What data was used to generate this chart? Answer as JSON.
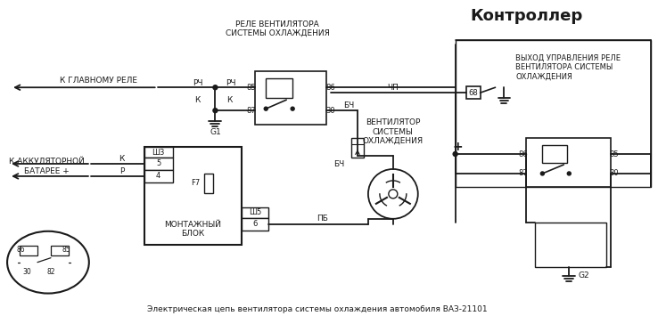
{
  "title": "Контроллер",
  "subtitle": "Электрическая цепь вентилятора системы охлаждения автомобиля ВАЗ-21101",
  "bg_color": "#ffffff",
  "line_color": "#1a1a1a",
  "labels": {
    "relay_top": "РЕЛЕ ВЕНТИЛЯТОРА\nСИСТЕМЫ ОХЛАЖДЕНИЯ",
    "k_glavnomu": "К ГЛАВНОМУ РЕЛЕ",
    "k_akkum": "К АККУЛЯТОРНОЙ\nБАТАРЕЕ +",
    "montazh": "МОНТАЖНЫЙ\nБЛОК",
    "ventilator": "ВЕНТИЛЯТОР\nСИСТЕМЫ\nОХЛАЖДЕНИЯ",
    "vyhod": "ВЫХОД УПРАВЛЕНИЯ РЕЛЕ\nВЕНТИЛЯТОРА СИСТЕМЫ\nОХЛАЖДЕНИЯ",
    "rch": "РЧ",
    "k": "К",
    "p": "Р",
    "bch": "БЧ",
    "chp": "ЧП",
    "pb": "ПБ",
    "g1": "G1",
    "g2": "G2",
    "f7": "F7",
    "sh3": "Ш3",
    "sh5": "Ш5",
    "n85": "85",
    "n86": "86",
    "n87": "87",
    "n30": "30",
    "n68": "68",
    "n5": "5",
    "n4": "4",
    "n6": "6",
    "n82": "82"
  }
}
